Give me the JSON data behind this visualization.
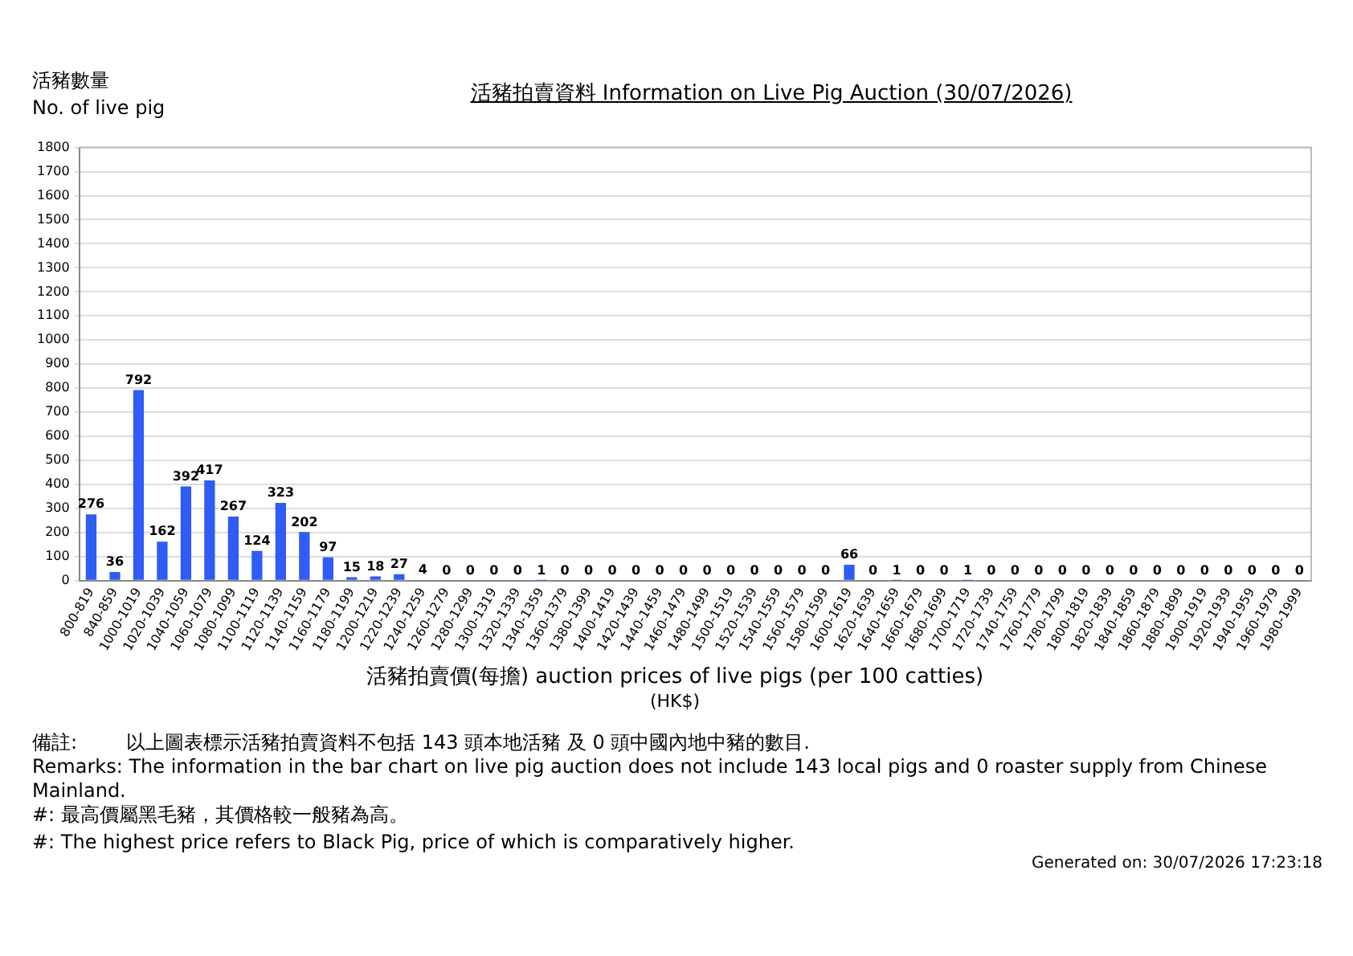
{
  "chart_data": {
    "type": "bar",
    "title": "活豬拍賣資料 Information on Live Pig Auction (30/07/2026)",
    "ylabel": "活豬數量\nNo. of live pig",
    "xlabel": "活豬拍賣價(每擔) auction prices of live pigs (per 100 catties)\n(HK$)",
    "categories": [
      "800-819",
      "840-859",
      "1000-1019",
      "1020-1039",
      "1040-1059",
      "1060-1079",
      "1080-1099",
      "1100-1119",
      "1120-1139",
      "1140-1159",
      "1160-1179",
      "1180-1199",
      "1200-1219",
      "1220-1239",
      "1240-1259",
      "1260-1279",
      "1280-1299",
      "1300-1319",
      "1320-1339",
      "1340-1359",
      "1360-1379",
      "1380-1399",
      "1400-1419",
      "1420-1439",
      "1440-1459",
      "1460-1479",
      "1480-1499",
      "1500-1519",
      "1520-1539",
      "1540-1559",
      "1560-1579",
      "1580-1599",
      "1600-1619",
      "1620-1639",
      "1640-1659",
      "1660-1679",
      "1680-1699",
      "1700-1719",
      "1720-1739",
      "1740-1759",
      "1760-1779",
      "1780-1799",
      "1800-1819",
      "1820-1839",
      "1840-1859",
      "1860-1879",
      "1880-1899",
      "1900-1919",
      "1920-1939",
      "1940-1959",
      "1960-1979",
      "1980-1999"
    ],
    "values": [
      276,
      36,
      792,
      162,
      392,
      417,
      267,
      124,
      323,
      202,
      97,
      15,
      18,
      27,
      4,
      0,
      0,
      0,
      0,
      1,
      0,
      0,
      0,
      0,
      0,
      0,
      0,
      0,
      0,
      0,
      0,
      0,
      66,
      0,
      1,
      0,
      0,
      1,
      0,
      0,
      0,
      0,
      0,
      0,
      0,
      0,
      0,
      0,
      0,
      0,
      0,
      0
    ],
    "color": "#2e5cf5",
    "ylim": [
      0,
      1800
    ],
    "yticks": [
      0,
      100,
      200,
      300,
      400,
      500,
      600,
      700,
      800,
      900,
      1000,
      1100,
      1200,
      1300,
      1400,
      1500,
      1600,
      1700,
      1800
    ],
    "grid": "y",
    "data_labels": true,
    "annotations": [
      "備註:        以上圖表標示活豬拍賣資料不包括 143 頭本地活豬 及 0 頭中國內地中豬的數目.",
      "Remarks: The information in the bar chart on live pig auction does not include 143 local pigs and 0 roaster supply from Chinese Mainland.",
      "#: 最高價屬黑毛豬，其價格較一般豬為高。",
      "#: The highest price refers to Black Pig, price of which is comparatively higher.",
      "Generated on: 30/07/2026 17:23:18"
    ]
  }
}
